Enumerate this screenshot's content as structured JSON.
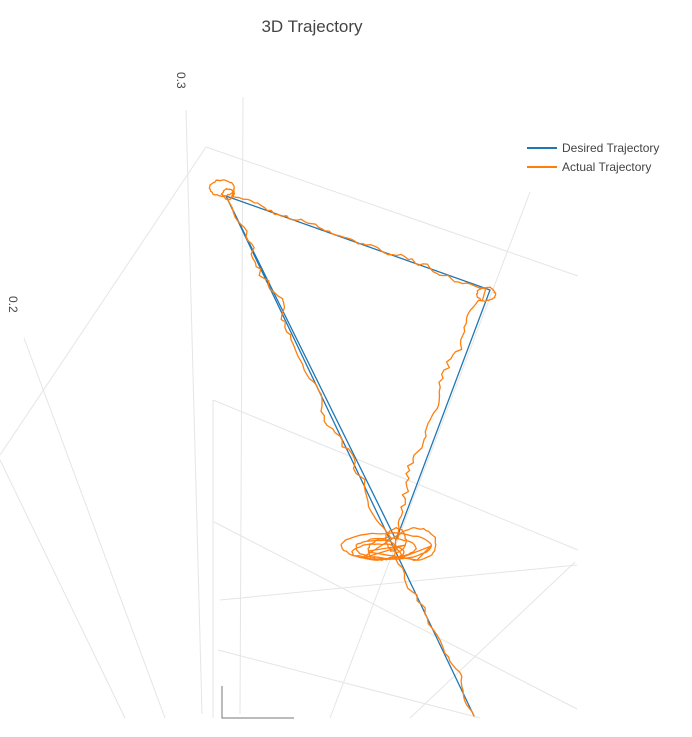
{
  "chart_data": {
    "type": "line",
    "title": "3D Trajectory",
    "z_tick_labels": [
      "0.2",
      "0.3"
    ],
    "legend": {
      "position": "top-right",
      "entries": [
        {
          "name": "Desired Trajectory",
          "color": "#1f77b4"
        },
        {
          "name": "Actual Trajectory",
          "color": "#ff7f0e"
        }
      ]
    },
    "series": [
      {
        "name": "Desired Trajectory",
        "color": "#1f77b4",
        "path_kind": "triangle",
        "vertices": [
          "A",
          "B",
          "C",
          "A",
          "D"
        ]
      },
      {
        "name": "Actual Trajectory",
        "color": "#ff7f0e",
        "path_kind": "noisy-tracking"
      }
    ]
  }
}
